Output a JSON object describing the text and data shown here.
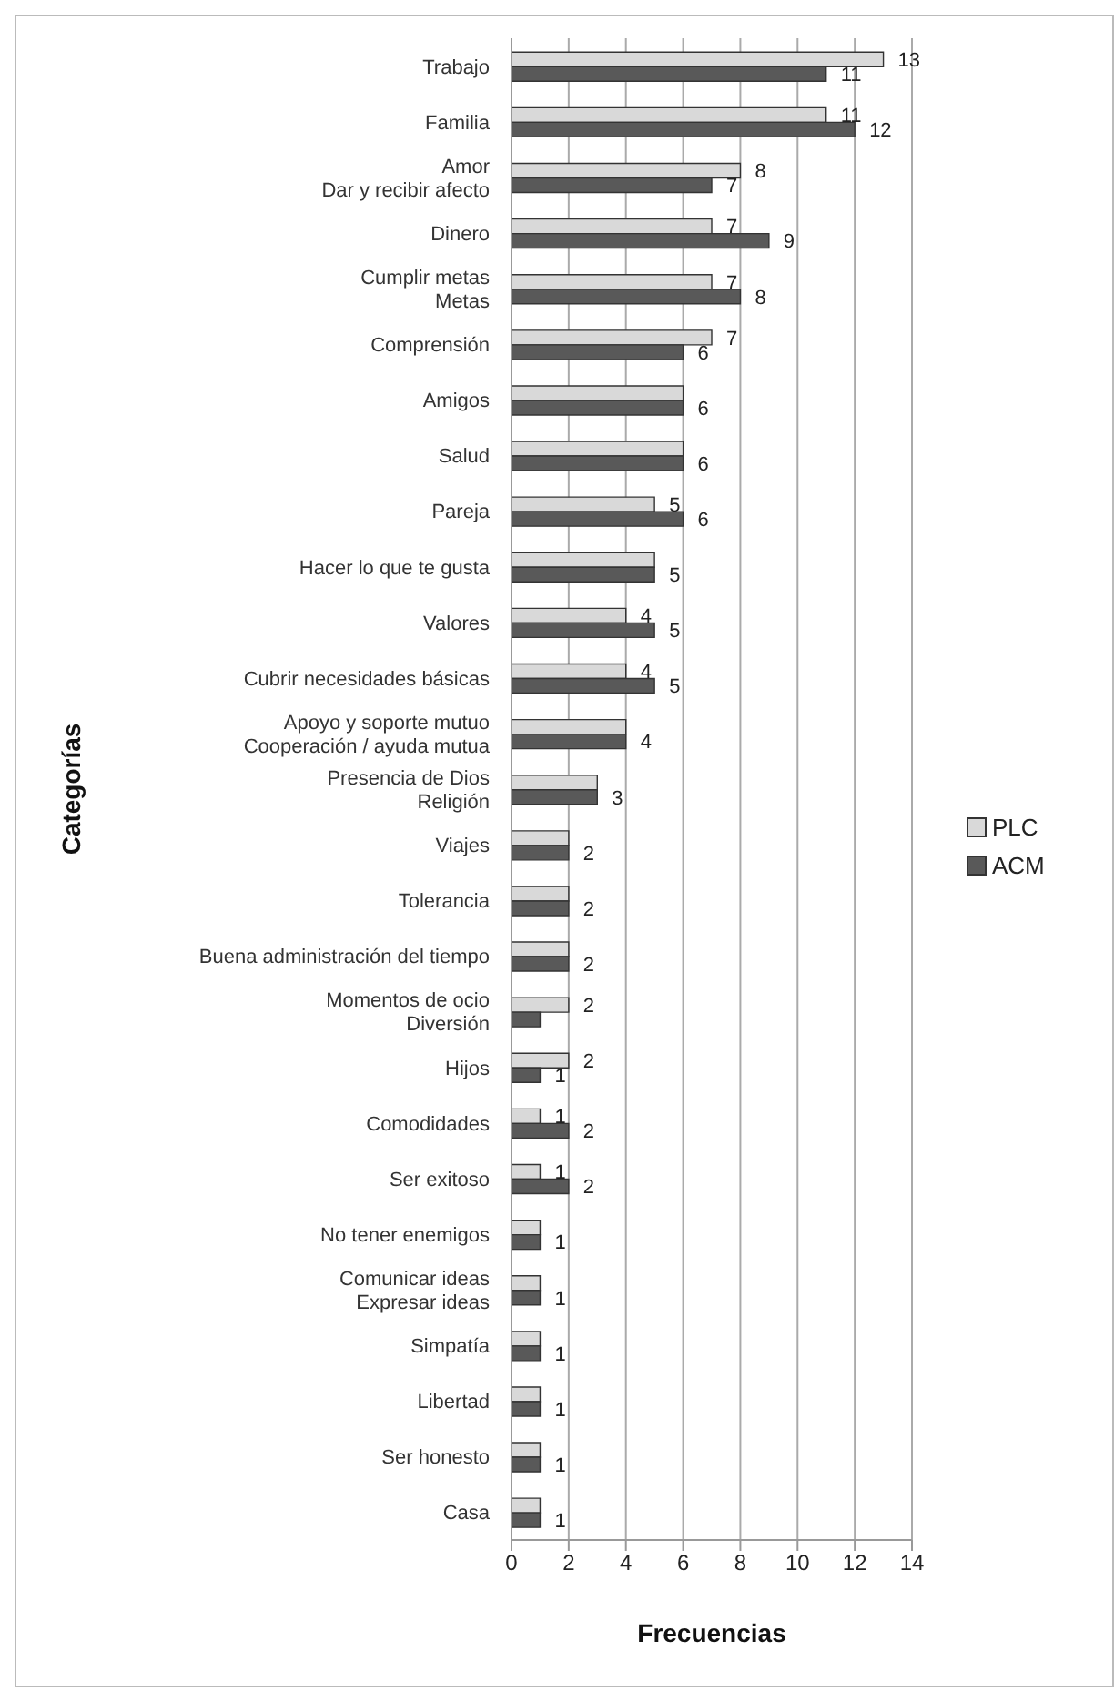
{
  "chart_data": {
    "type": "bar",
    "orientation": "horizontal",
    "xlabel": "Frecuencias",
    "ylabel": "Categorías",
    "categories": [
      "Trabajo",
      "Familia",
      "Amor\nDar y recibir afecto",
      "Dinero",
      "Cumplir metas\nMetas",
      "Comprensión",
      "Amigos",
      "Salud",
      "Pareja",
      "Hacer lo que te gusta",
      "Valores",
      "Cubrir necesidades básicas",
      "Apoyo y soporte mutuo\nCooperación / ayuda mutua",
      "Presencia de Dios\nReligión",
      "Viajes",
      "Tolerancia",
      "Buena administración del tiempo",
      "Momentos de ocio\nDiversión",
      "Hijos",
      "Comodidades",
      "Ser exitoso",
      "No tener enemigos",
      "Comunicar ideas\nExpresar ideas",
      "Simpatía",
      "Libertad",
      "Ser honesto",
      "Casa"
    ],
    "series": [
      {
        "name": "PLC",
        "color": "#d9d9d9",
        "values": [
          13,
          11,
          8,
          7,
          7,
          7,
          6,
          6,
          5,
          5,
          4,
          4,
          4,
          3,
          2,
          2,
          2,
          2,
          2,
          1,
          1,
          1,
          1,
          1,
          1,
          1,
          1
        ],
        "value_labels": [
          "13",
          "11",
          "8",
          "7",
          "7",
          "7",
          null,
          null,
          "5",
          null,
          "4",
          "4",
          null,
          null,
          null,
          null,
          null,
          "2",
          "2",
          "1",
          "1",
          null,
          null,
          null,
          null,
          null,
          null
        ]
      },
      {
        "name": "ACM",
        "color": "#595959",
        "values": [
          11,
          12,
          7,
          9,
          8,
          6,
          6,
          6,
          6,
          5,
          5,
          5,
          4,
          3,
          2,
          2,
          2,
          1,
          1,
          2,
          2,
          1,
          1,
          1,
          1,
          1,
          1
        ],
        "value_labels": [
          "11",
          "12",
          "7",
          "9",
          "8",
          "6",
          "6",
          "6",
          "6",
          "5",
          "5",
          "5",
          "4",
          "3",
          "2",
          "2",
          "2",
          null,
          "1",
          "2",
          "2",
          "1",
          "1",
          "1",
          "1",
          "1",
          "1"
        ]
      }
    ],
    "xlim": [
      0,
      14
    ],
    "xticks": [
      0,
      2,
      4,
      6,
      8,
      10,
      12,
      14
    ],
    "grid": "x",
    "legend": "right"
  }
}
